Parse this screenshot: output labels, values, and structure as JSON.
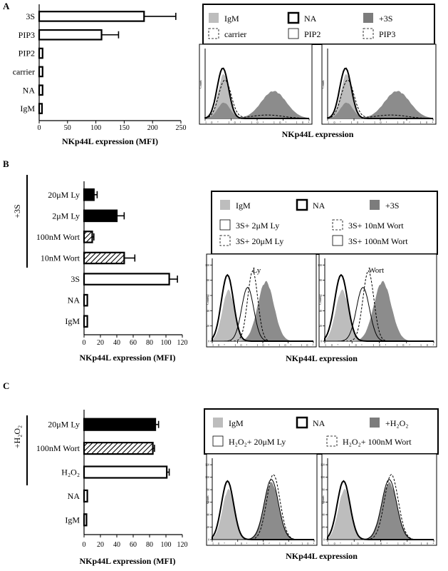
{
  "panels": [
    {
      "letter": "A",
      "bar": {
        "type": "bar",
        "group_label": "",
        "categories": [
          "3S",
          "PIP3",
          "PIP2",
          "carrier",
          "NA",
          "IgM"
        ],
        "values": [
          185,
          110,
          6,
          6,
          6,
          5
        ],
        "errors": [
          56,
          30,
          0,
          0,
          0,
          0
        ],
        "fills": [
          "white",
          "white",
          "white",
          "white",
          "white",
          "white"
        ],
        "xlim": [
          0,
          250
        ],
        "ticks": [
          0,
          50,
          100,
          150,
          200,
          250
        ],
        "xlabel": "NKp44L expression (MFI)"
      },
      "legend": [
        {
          "label": "IgM",
          "style": "lightfill"
        },
        {
          "label": "NA",
          "style": "thick"
        },
        {
          "label": "+3S",
          "style": "darkfill"
        },
        {
          "label": "carrier",
          "style": "dashed"
        },
        {
          "label": "PIP2",
          "style": "solid"
        },
        {
          "label": "PIP3",
          "style": "dashed"
        }
      ],
      "histograms": [
        {
          "label": "",
          "axis_ticks": "10⁰ 10¹ 10² 10³ 10⁴",
          "ylabel": "Counts"
        },
        {
          "label": "",
          "axis_ticks": "10⁰ 10¹ 10² 10³ 10⁴",
          "ylabel": "Counts"
        }
      ],
      "hist_xlabel": "NKp44L expression"
    },
    {
      "letter": "B",
      "bar": {
        "type": "bar",
        "group_label": "+3S",
        "categories": [
          "20μM Ly",
          "2μM Ly",
          "100nM Wort",
          "10nM Wort",
          "3S",
          "NA",
          "IgM"
        ],
        "values": [
          12,
          40,
          10,
          49,
          104,
          4,
          4
        ],
        "errors": [
          4,
          9,
          2,
          13,
          10,
          0,
          0
        ],
        "fills": [
          "black",
          "black",
          "hatch",
          "hatch",
          "white",
          "white",
          "white"
        ],
        "xlim": [
          0,
          120
        ],
        "ticks": [
          0,
          20,
          40,
          60,
          80,
          100,
          120
        ],
        "xlabel": "NKp44L expression (MFI)"
      },
      "legend": [
        {
          "label": "IgM",
          "style": "lightfill"
        },
        {
          "label": "NA",
          "style": "thick"
        },
        {
          "label": "+3S",
          "style": "darkfill"
        },
        {
          "label": "3S+ 2μM Ly",
          "style": "solid"
        },
        {
          "label": "3S+ 10nM Wort",
          "style": "dashed"
        },
        {
          "label": "3S+ 20μM Ly",
          "style": "dashed"
        },
        {
          "label": "3S+ 100nM Wort",
          "style": "solid"
        }
      ],
      "histograms": [
        {
          "label": "Ly",
          "axis_ticks": "10⁰ 10¹ 10² 10³ 10⁴",
          "ylabel": "Counts"
        },
        {
          "label": "Wort",
          "axis_ticks": "10⁰ 10¹ 10² 10³ 10⁴",
          "ylabel": "Counts"
        }
      ],
      "hist_ytick_labels": [
        "0",
        "20",
        "40",
        "60",
        "80",
        "100"
      ],
      "hist_xlabel": "NKp44L expression"
    },
    {
      "letter": "C",
      "bar": {
        "type": "bar",
        "group_label": "+H₂O₂",
        "categories": [
          "20μM Ly",
          "100nM Wort",
          "H₂O₂",
          "NA",
          "IgM"
        ],
        "values": [
          87,
          84,
          101,
          4,
          3
        ],
        "errors": [
          4,
          2,
          3,
          0,
          0
        ],
        "fills": [
          "black",
          "hatch",
          "white",
          "white",
          "white"
        ],
        "xlim": [
          0,
          120
        ],
        "ticks": [
          0,
          20,
          40,
          60,
          80,
          100,
          120
        ],
        "xlabel": "NKp44L expression (MFI)"
      },
      "legend": [
        {
          "label": "IgM",
          "style": "lightfill"
        },
        {
          "label": "NA",
          "style": "thick"
        },
        {
          "label": "+H₂O₂",
          "style": "darkfill"
        },
        {
          "label": "H₂O₂+ 20μM Ly",
          "style": "solid"
        },
        {
          "label": "H₂O₂+ 100nM Wort",
          "style": "dashed"
        }
      ],
      "histograms": [
        {
          "label": "",
          "axis_ticks": "10⁰ 10¹ 10² 10³ 10⁴",
          "ylabel": "Counts"
        },
        {
          "label": "",
          "axis_ticks": "10⁰ 10¹ 10² 10³ 10⁴",
          "ylabel": "Counts"
        }
      ],
      "hist_ytick_labels": [
        "0",
        "20",
        "40",
        "60",
        "80",
        "100",
        "120"
      ],
      "hist_xlabel": "NKp44L expression"
    }
  ],
  "chart_data": [
    {
      "type": "bar",
      "panel": "A",
      "orientation": "horizontal",
      "categories": [
        "3S",
        "PIP3",
        "PIP2",
        "carrier",
        "NA",
        "IgM"
      ],
      "values": [
        185,
        110,
        6,
        6,
        6,
        5
      ],
      "errors": [
        56,
        30,
        0,
        0,
        0,
        0
      ],
      "xlabel": "NKp44L expression (MFI)",
      "xlim": [
        0,
        250
      ]
    },
    {
      "type": "bar",
      "panel": "B",
      "orientation": "horizontal",
      "categories": [
        "20μM Ly",
        "2μM Ly",
        "100nM Wort",
        "10nM Wort",
        "3S",
        "NA",
        "IgM"
      ],
      "values": [
        12,
        40,
        10,
        49,
        104,
        4,
        4
      ],
      "errors": [
        4,
        9,
        2,
        13,
        10,
        0,
        0
      ],
      "xlabel": "NKp44L expression (MFI)",
      "xlim": [
        0,
        120
      ]
    },
    {
      "type": "bar",
      "panel": "C",
      "orientation": "horizontal",
      "categories": [
        "20μM Ly",
        "100nM Wort",
        "H₂O₂",
        "NA",
        "IgM"
      ],
      "values": [
        87,
        84,
        101,
        4,
        3
      ],
      "errors": [
        4,
        2,
        3,
        0,
        0
      ],
      "xlabel": "NKp44L expression (MFI)",
      "xlim": [
        0,
        120
      ]
    }
  ]
}
